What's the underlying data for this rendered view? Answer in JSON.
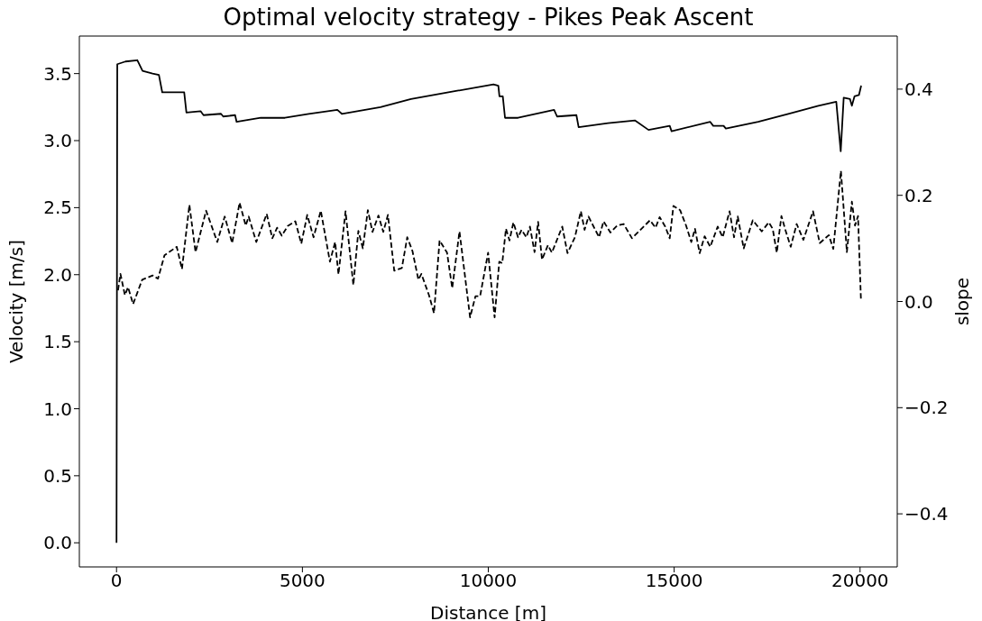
{
  "chart_data": {
    "type": "line",
    "title": "Optimal velocity strategy - Pikes Peak Ascent",
    "xlabel": "Distance [m]",
    "ylabel": "Velocity [m/s]",
    "y2label": "slope",
    "xlim": [
      -1000,
      21000
    ],
    "xticks": [
      0,
      5000,
      10000,
      15000,
      20000
    ],
    "ylim": [
      -0.18,
      3.78
    ],
    "yticks": [
      {
        "value": 0,
        "label": "0.0"
      },
      {
        "value": 0.5,
        "label": "0.5"
      },
      {
        "value": 1,
        "label": "1.0"
      },
      {
        "value": 1.5,
        "label": "1.5"
      },
      {
        "value": 2,
        "label": "2.0"
      },
      {
        "value": 2.5,
        "label": "2.5"
      },
      {
        "value": 3,
        "label": "3.0"
      },
      {
        "value": 3.5,
        "label": "3.5"
      }
    ],
    "y2lim": [
      -0.5,
      0.5
    ],
    "y2ticks": [
      {
        "value": -0.4,
        "label": "−0.4"
      },
      {
        "value": -0.2,
        "label": "−0.2"
      },
      {
        "value": 0,
        "label": "0.0"
      },
      {
        "value": 0.2,
        "label": "0.2"
      },
      {
        "value": 0.4,
        "label": "0.4"
      }
    ],
    "grid": false,
    "legend": false,
    "marker": "none",
    "series": [
      {
        "color": "#000000",
        "line_style": "solid",
        "x": [
          0,
          20,
          240,
          560,
          700,
          970,
          1140,
          1230,
          1820,
          1880,
          2260,
          2340,
          2810,
          2870,
          3190,
          3230,
          3880,
          4530,
          5170,
          5940,
          6060,
          7100,
          7920,
          9130,
          10140,
          10270,
          10300,
          10390,
          10450,
          10800,
          11770,
          11850,
          12370,
          12430,
          13220,
          13950,
          14310,
          14880,
          14930,
          15970,
          16050,
          16330,
          16390,
          17260,
          18070,
          18880,
          19360,
          19480,
          19560,
          19730,
          19780,
          19850,
          19970,
          20030
        ],
        "values": [
          0,
          3.57,
          3.59,
          3.6,
          3.52,
          3.5,
          3.49,
          3.36,
          3.36,
          3.21,
          3.22,
          3.19,
          3.2,
          3.18,
          3.19,
          3.14,
          3.17,
          3.17,
          3.2,
          3.23,
          3.2,
          3.25,
          3.31,
          3.37,
          3.42,
          3.41,
          3.33,
          3.33,
          3.17,
          3.17,
          3.23,
          3.18,
          3.19,
          3.1,
          3.13,
          3.15,
          3.08,
          3.11,
          3.07,
          3.14,
          3.11,
          3.11,
          3.09,
          3.14,
          3.2,
          3.26,
          3.29,
          2.92,
          3.32,
          3.31,
          3.26,
          3.33,
          3.34,
          3.41
        ]
      },
      {
        "color": "#000000",
        "line_style": "dashed",
        "axis": "y2",
        "x": [
          40,
          105,
          225,
          310,
          445,
          690,
          970,
          1115,
          1290,
          1620,
          1760,
          1960,
          2125,
          2410,
          2710,
          2910,
          3110,
          3310,
          3475,
          3555,
          3760,
          4040,
          4190,
          4320,
          4445,
          4605,
          4810,
          4970,
          5130,
          5300,
          5495,
          5740,
          5880,
          5970,
          6160,
          6370,
          6505,
          6625,
          6760,
          6885,
          7045,
          7175,
          7300,
          7470,
          7675,
          7820,
          7960,
          8120,
          8200,
          8405,
          8540,
          8690,
          8890,
          9030,
          9225,
          9510,
          9655,
          9780,
          9995,
          10170,
          10295,
          10375,
          10475,
          10570,
          10675,
          10800,
          10895,
          11025,
          11120,
          11245,
          11340,
          11445,
          11605,
          11710,
          11990,
          12130,
          12330,
          12490,
          12590,
          12695,
          12980,
          13100,
          13285,
          13465,
          13640,
          13865,
          14350,
          14500,
          14610,
          14760,
          14880,
          14980,
          15160,
          15320,
          15460,
          15560,
          15685,
          15820,
          15970,
          16170,
          16305,
          16490,
          16610,
          16710,
          16870,
          17115,
          17355,
          17545,
          17650,
          17760,
          17885,
          17990,
          18135,
          18295,
          18475,
          18735,
          18915,
          19160,
          19280,
          19485,
          19645,
          19780,
          19865,
          19945,
          20025
        ],
        "values": [
          0.021,
          0.052,
          0.012,
          0.027,
          -0.005,
          0.041,
          0.049,
          0.043,
          0.087,
          0.103,
          0.061,
          0.182,
          0.093,
          0.171,
          0.112,
          0.16,
          0.11,
          0.186,
          0.143,
          0.16,
          0.112,
          0.165,
          0.119,
          0.139,
          0.124,
          0.142,
          0.151,
          0.109,
          0.163,
          0.121,
          0.171,
          0.075,
          0.112,
          0.051,
          0.17,
          0.031,
          0.133,
          0.1,
          0.172,
          0.131,
          0.162,
          0.131,
          0.163,
          0.058,
          0.063,
          0.121,
          0.095,
          0.041,
          0.052,
          0.012,
          -0.022,
          0.115,
          0.092,
          0.025,
          0.132,
          -0.03,
          0.01,
          0.01,
          0.092,
          -0.03,
          0.075,
          0.072,
          0.137,
          0.115,
          0.149,
          0.121,
          0.135,
          0.121,
          0.141,
          0.093,
          0.15,
          0.079,
          0.106,
          0.092,
          0.141,
          0.091,
          0.121,
          0.17,
          0.135,
          0.16,
          0.121,
          0.151,
          0.13,
          0.143,
          0.146,
          0.119,
          0.153,
          0.139,
          0.159,
          0.141,
          0.119,
          0.18,
          0.172,
          0.143,
          0.112,
          0.137,
          0.091,
          0.123,
          0.103,
          0.141,
          0.121,
          0.17,
          0.121,
          0.16,
          0.1,
          0.153,
          0.132,
          0.149,
          0.137,
          0.092,
          0.161,
          0.135,
          0.103,
          0.146,
          0.116,
          0.17,
          0.11,
          0.125,
          0.099,
          0.246,
          0.093,
          0.188,
          0.143,
          0.161,
          0.001
        ]
      }
    ]
  }
}
